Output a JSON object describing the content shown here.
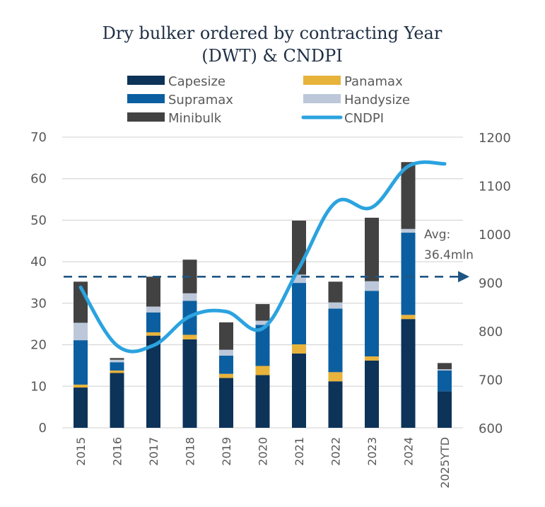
{
  "chart_data": {
    "type": "bar",
    "stacked": true,
    "title_lines": [
      "Dry bulker ordered by contracting Year",
      "(DWT) & CNDPI"
    ],
    "title": "Dry bulker ordered by contracting Year (DWT) & CNDPI",
    "xlabel": "",
    "ylabel": "",
    "y2label": "",
    "categories": [
      "2015",
      "2016",
      "2017",
      "2018",
      "2019",
      "2020",
      "2021",
      "2022",
      "2023",
      "2024",
      "2025YTD"
    ],
    "ylim": [
      0,
      70
    ],
    "yticks": [
      0,
      10,
      20,
      30,
      40,
      50,
      60,
      70
    ],
    "y2lim": [
      600,
      1200
    ],
    "y2ticks": [
      600,
      700,
      800,
      900,
      1000,
      1100,
      1200
    ],
    "grid": true,
    "legend_position": "top",
    "series": [
      {
        "name": "Capesize",
        "color": "#0d3358",
        "values": [
          9.7,
          13.2,
          22.2,
          21.3,
          12.0,
          12.7,
          17.9,
          11.2,
          16.2,
          26.2,
          8.8
        ]
      },
      {
        "name": "Panamax",
        "color": "#e8b33a",
        "values": [
          0.7,
          0.6,
          0.8,
          1.1,
          1.0,
          2.2,
          2.2,
          2.2,
          1.0,
          1.0,
          0.0
        ]
      },
      {
        "name": "Supramax",
        "color": "#0b5fa0",
        "values": [
          10.7,
          2.0,
          4.8,
          8.2,
          4.4,
          9.9,
          14.8,
          15.3,
          15.8,
          19.8,
          5.0
        ]
      },
      {
        "name": "Handysize",
        "color": "#bcc8d9",
        "values": [
          4.2,
          0.6,
          1.4,
          1.8,
          1.4,
          1.0,
          2.0,
          1.5,
          2.3,
          0.9,
          0.3
        ]
      },
      {
        "name": "Minibulk",
        "color": "#424242",
        "values": [
          9.9,
          0.4,
          7.2,
          8.1,
          6.6,
          4.0,
          13.0,
          5.0,
          15.3,
          16.1,
          1.5
        ]
      }
    ],
    "line_series": {
      "name": "CNDPI",
      "color": "#2ba3df",
      "axis": "right",
      "values": [
        890,
        770,
        770,
        830,
        840,
        805,
        930,
        1065,
        1055,
        1140,
        1145
      ]
    },
    "legend": [
      {
        "name": "Capesize",
        "kind": "bar",
        "color": "#0d3358"
      },
      {
        "name": "Panamax",
        "kind": "bar",
        "color": "#e8b33a"
      },
      {
        "name": "Supramax",
        "kind": "bar",
        "color": "#0b5fa0"
      },
      {
        "name": "Handysize",
        "kind": "bar",
        "color": "#bcc8d9"
      },
      {
        "name": "Minibulk",
        "kind": "bar",
        "color": "#424242"
      },
      {
        "name": "CNDPI",
        "kind": "line",
        "color": "#2ba3df"
      }
    ],
    "average_line": {
      "value": 36.4,
      "color": "#1f5583",
      "style": "dashed",
      "label_lines": [
        "Avg:",
        "36.4mln"
      ]
    }
  }
}
